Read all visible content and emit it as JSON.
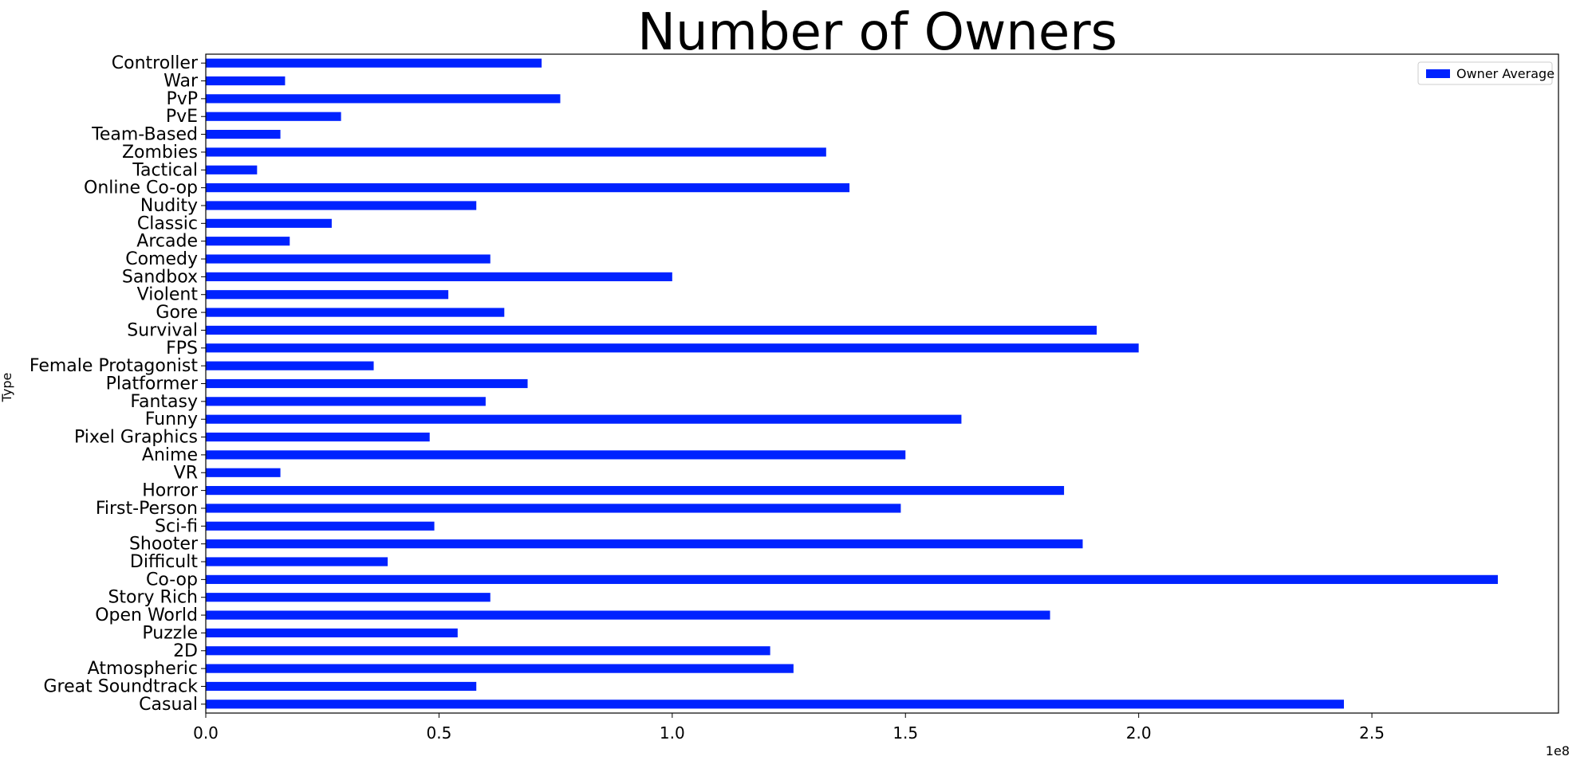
{
  "chart_data": {
    "type": "bar",
    "orientation": "horizontal",
    "title": "Number of Owners",
    "xlabel": "",
    "ylabel": "Type",
    "x_scale_label": "1e8",
    "xlim": [
      0,
      2.9
    ],
    "xticks": [
      0.0,
      0.5,
      1.0,
      1.5,
      2.0,
      2.5
    ],
    "xtick_labels": [
      "0.0",
      "0.5",
      "1.0",
      "1.5",
      "2.0",
      "2.5"
    ],
    "legend": {
      "location": "top-right",
      "entries": [
        "Owner Average"
      ]
    },
    "bar_color": "#0022ff",
    "categories": [
      "Casual",
      "Great Soundtrack",
      "Atmospheric",
      "2D",
      "Puzzle",
      "Open World",
      "Story Rich",
      "Co-op",
      "Difficult",
      "Shooter",
      "Sci-fi",
      "First-Person",
      "Horror",
      "VR",
      "Anime",
      "Pixel Graphics",
      "Funny",
      "Fantasy",
      "Platformer",
      "Female Protagonist",
      "FPS",
      "Survival",
      "Gore",
      "Violent",
      "Sandbox",
      "Comedy",
      "Arcade",
      "Classic",
      "Nudity",
      "Online Co-op",
      "Tactical",
      "Zombies",
      "Team-Based",
      "PvE",
      "PvP",
      "War",
      "Controller"
    ],
    "series": [
      {
        "name": "Owner Average",
        "values": [
          2.44,
          0.58,
          1.26,
          1.21,
          0.54,
          1.81,
          0.61,
          2.77,
          0.39,
          1.88,
          0.49,
          1.49,
          1.84,
          0.16,
          1.5,
          0.48,
          1.62,
          0.6,
          0.69,
          0.36,
          2.0,
          1.91,
          0.64,
          0.52,
          1.0,
          0.61,
          0.18,
          0.27,
          0.58,
          1.38,
          0.11,
          1.33,
          0.16,
          0.29,
          0.76,
          0.17,
          0.72
        ]
      }
    ]
  }
}
